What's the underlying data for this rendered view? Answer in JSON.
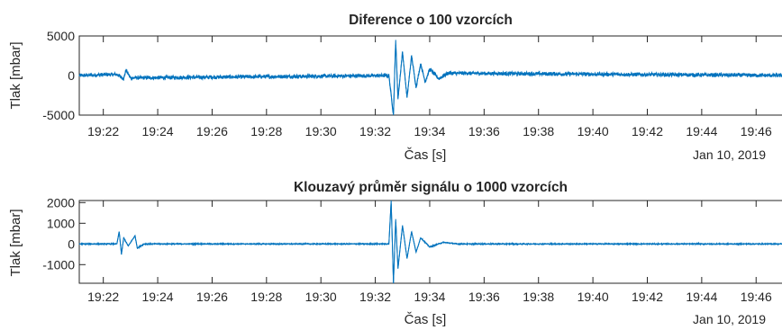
{
  "colors": {
    "series": "#0072BD",
    "axis": "#262626",
    "background": "#ffffff"
  },
  "chart_data": [
    {
      "type": "line",
      "title": "Diference o 100 vzorcích",
      "xlabel": "Čas [s]",
      "ylabel": "Tlak [mbar]",
      "date_label": "Jan 10, 2019",
      "ylim": [
        -5000,
        5000
      ],
      "yticks": [
        -5000,
        0,
        5000
      ],
      "ytick_labels": [
        "-5000",
        "0",
        "5000"
      ],
      "xlim": [
        "19:21:07",
        "19:47:17"
      ],
      "xticks": [
        "19:22",
        "19:24",
        "19:26",
        "19:28",
        "19:30",
        "19:32",
        "19:34",
        "19:36",
        "19:38",
        "19:40",
        "19:42",
        "19:44",
        "19:46"
      ],
      "grid": false,
      "series": [
        {
          "noise_amplitude": 250,
          "points": [
            [
              "19:21:07",
              0
            ],
            [
              "19:22:30",
              150
            ],
            [
              "19:22:45",
              -400
            ],
            [
              "19:22:50",
              700
            ],
            [
              "19:23:00",
              -300
            ],
            [
              "19:32:30",
              0
            ],
            [
              "19:32:40",
              -5000
            ],
            [
              "19:32:45",
              4500
            ],
            [
              "19:32:50",
              -3000
            ],
            [
              "19:33:00",
              3000
            ],
            [
              "19:33:10",
              -2800
            ],
            [
              "19:33:20",
              2500
            ],
            [
              "19:33:30",
              -1500
            ],
            [
              "19:33:40",
              1500
            ],
            [
              "19:33:50",
              -800
            ],
            [
              "19:34:00",
              800
            ],
            [
              "19:34:20",
              -400
            ],
            [
              "19:34:40",
              300
            ],
            [
              "19:47:17",
              0
            ]
          ]
        }
      ]
    },
    {
      "type": "line",
      "title": "Klouzavý průměr signálu o 1000 vzorcích",
      "xlabel": "Čas [s]",
      "ylabel": "Tlak [mbar]",
      "date_label": "Jan 10, 2019",
      "ylim": [
        -1900,
        2100
      ],
      "yticks": [
        -1000,
        0,
        1000,
        2000
      ],
      "ytick_labels": [
        "-1000",
        "0",
        "1000",
        "2000"
      ],
      "xlim": [
        "19:21:07",
        "19:47:17"
      ],
      "xticks": [
        "19:22",
        "19:24",
        "19:26",
        "19:28",
        "19:30",
        "19:32",
        "19:34",
        "19:36",
        "19:38",
        "19:40",
        "19:42",
        "19:44",
        "19:46"
      ],
      "grid": false,
      "series": [
        {
          "noise_amplitude": 30,
          "points": [
            [
              "19:21:07",
              0
            ],
            [
              "19:22:30",
              0
            ],
            [
              "19:22:35",
              600
            ],
            [
              "19:22:40",
              -500
            ],
            [
              "19:22:45",
              300
            ],
            [
              "19:22:55",
              -100
            ],
            [
              "19:23:10",
              400
            ],
            [
              "19:23:15",
              -200
            ],
            [
              "19:23:30",
              0
            ],
            [
              "19:32:30",
              0
            ],
            [
              "19:32:35",
              2100
            ],
            [
              "19:32:40",
              -1900
            ],
            [
              "19:32:45",
              1200
            ],
            [
              "19:32:50",
              -1200
            ],
            [
              "19:33:00",
              900
            ],
            [
              "19:33:10",
              -700
            ],
            [
              "19:33:20",
              600
            ],
            [
              "19:33:30",
              -400
            ],
            [
              "19:33:40",
              300
            ],
            [
              "19:34:00",
              -150
            ],
            [
              "19:34:30",
              80
            ],
            [
              "19:35:00",
              0
            ],
            [
              "19:47:17",
              0
            ]
          ]
        }
      ]
    }
  ]
}
